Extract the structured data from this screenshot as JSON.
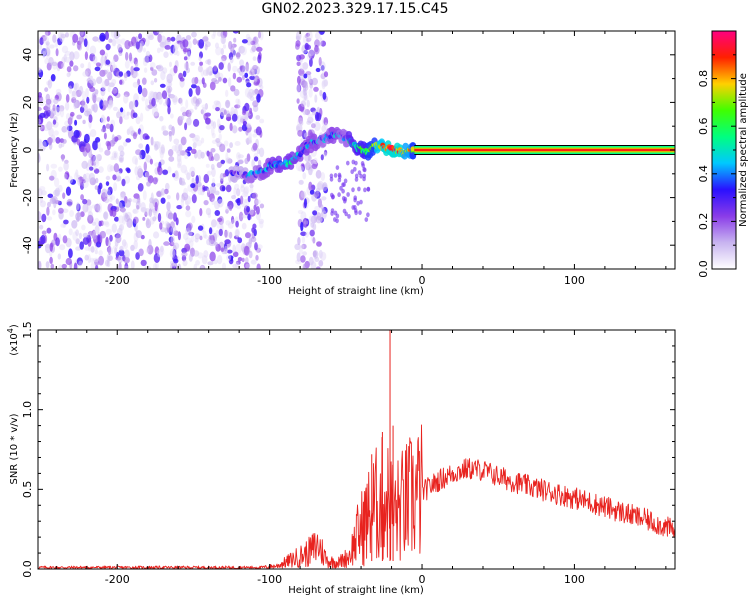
{
  "title": "GN02.2023.329.17.15.C45",
  "chart_data": [
    {
      "type": "heatmap",
      "xlabel": "Height of straight line (km)",
      "ylabel": "Frequency (Hz)",
      "xlim": [
        -252,
        166
      ],
      "ylim": [
        -50,
        50
      ],
      "xticks": [
        -200,
        -100,
        0,
        100
      ],
      "xtick_labels": [
        "-200",
        "-100",
        "0",
        "100"
      ],
      "yticks": [
        -40,
        -20,
        0,
        20,
        40
      ],
      "ytick_labels": [
        "-40",
        "-20",
        "0",
        "20",
        "40"
      ],
      "colorbar": {
        "label": "Normalized spectral amplitude",
        "range": [
          0,
          1
        ],
        "ticks": [
          0.0,
          0.2,
          0.4,
          0.6,
          0.8
        ],
        "tick_labels": [
          "0.0",
          "0.2",
          "0.4",
          "0.6",
          "0.8"
        ],
        "colors": [
          "#ffffff",
          "#c8b4f0",
          "#8a3ce8",
          "#2a10ff",
          "#00c8ff",
          "#00ff80",
          "#40ff00",
          "#ffd000",
          "#ff2000",
          "#ff0080"
        ]
      },
      "signal_track": [
        {
          "x": -125,
          "y": -10,
          "v": 0.2
        },
        {
          "x": -115,
          "y": -11,
          "v": 0.3
        },
        {
          "x": -105,
          "y": -9,
          "v": 0.35
        },
        {
          "x": -98,
          "y": -6,
          "v": 0.4
        },
        {
          "x": -90,
          "y": -6,
          "v": 0.4
        },
        {
          "x": -82,
          "y": -3,
          "v": 0.35
        },
        {
          "x": -75,
          "y": 2,
          "v": 0.35
        },
        {
          "x": -68,
          "y": 4,
          "v": 0.3
        },
        {
          "x": -60,
          "y": 6,
          "v": 0.35
        },
        {
          "x": -54,
          "y": 7,
          "v": 0.3
        },
        {
          "x": -48,
          "y": 4,
          "v": 0.45
        },
        {
          "x": -42,
          "y": 1,
          "v": 0.5
        },
        {
          "x": -36,
          "y": -1,
          "v": 0.6
        },
        {
          "x": -30,
          "y": 2,
          "v": 0.75
        },
        {
          "x": -24,
          "y": 1,
          "v": 0.8
        },
        {
          "x": -18,
          "y": 0,
          "v": 0.8
        },
        {
          "x": -12,
          "y": -1,
          "v": 0.7
        },
        {
          "x": -6,
          "y": 0,
          "v": 0.6
        }
      ],
      "constant_tone": {
        "y": 0,
        "x_from": -5,
        "x_to": 166,
        "v": 0.9
      },
      "noise_regions": [
        [
          -252,
          -105
        ],
        [
          -82,
          -63
        ]
      ]
    },
    {
      "type": "line",
      "xlabel": "Height of straight line (km)",
      "ylabel": "SNR (10 * v/v)",
      "y_multiplier_label": "(x10",
      "y_multiplier_exp": "4",
      "y_multiplier_close": ")",
      "xlim": [
        -252,
        166
      ],
      "ylim": [
        0,
        1.5
      ],
      "xticks": [
        -200,
        -100,
        0,
        100
      ],
      "xtick_labels": [
        "-200",
        "-100",
        "0",
        "100"
      ],
      "yticks": [
        0.0,
        0.5,
        1.0,
        1.5
      ],
      "ytick_labels": [
        "0.0",
        "0.5",
        "1.0",
        "1.5"
      ],
      "color": "#e8231f",
      "envelope": [
        {
          "x": -252,
          "y": 0.01
        },
        {
          "x": -200,
          "y": 0.01
        },
        {
          "x": -150,
          "y": 0.01
        },
        {
          "x": -105,
          "y": 0.01
        },
        {
          "x": -95,
          "y": 0.02
        },
        {
          "x": -85,
          "y": 0.06
        },
        {
          "x": -75,
          "y": 0.1
        },
        {
          "x": -68,
          "y": 0.15
        },
        {
          "x": -62,
          "y": 0.05
        },
        {
          "x": -55,
          "y": 0.04
        },
        {
          "x": -48,
          "y": 0.08
        },
        {
          "x": -42,
          "y": 0.22
        },
        {
          "x": -36,
          "y": 0.32
        },
        {
          "x": -30,
          "y": 0.4
        },
        {
          "x": -24,
          "y": 0.45
        },
        {
          "x": -18,
          "y": 0.35
        },
        {
          "x": -12,
          "y": 0.4
        },
        {
          "x": -6,
          "y": 0.45
        },
        {
          "x": 0,
          "y": 0.48
        },
        {
          "x": 10,
          "y": 0.55
        },
        {
          "x": 20,
          "y": 0.6
        },
        {
          "x": 30,
          "y": 0.63
        },
        {
          "x": 40,
          "y": 0.62
        },
        {
          "x": 50,
          "y": 0.58
        },
        {
          "x": 70,
          "y": 0.52
        },
        {
          "x": 90,
          "y": 0.47
        },
        {
          "x": 110,
          "y": 0.42
        },
        {
          "x": 130,
          "y": 0.36
        },
        {
          "x": 150,
          "y": 0.3
        },
        {
          "x": 166,
          "y": 0.24
        }
      ],
      "peaks": [
        {
          "x": -33,
          "y": 0.72
        },
        {
          "x": -26,
          "y": 0.86
        },
        {
          "x": -21,
          "y": 1.5
        },
        {
          "x": -19,
          "y": 0.9
        }
      ]
    }
  ]
}
